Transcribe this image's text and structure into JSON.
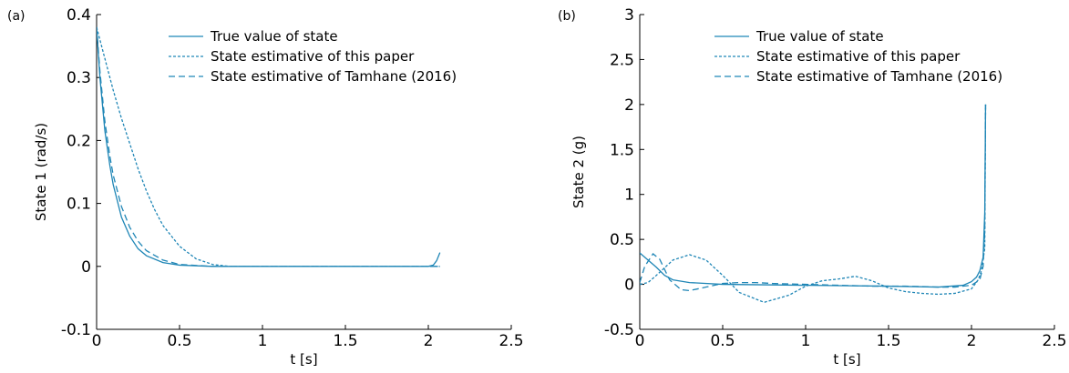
{
  "colors": {
    "series": "#1f86b6"
  },
  "chart_data": [
    {
      "panel_label": "(a)",
      "type": "line",
      "xlabel": "t [s]",
      "ylabel": "State 1 (rad/s)",
      "xlim": [
        0,
        2.5
      ],
      "ylim": [
        -0.1,
        0.4
      ],
      "xticks": [
        0,
        0.5,
        1,
        1.5,
        2,
        2.5
      ],
      "xtick_labels": [
        "0",
        "0.5",
        "1",
        "1.5",
        "2",
        "2.5"
      ],
      "yticks": [
        -0.1,
        0,
        0.1,
        0.2,
        0.3,
        0.4
      ],
      "ytick_labels": [
        "-0.1",
        "0",
        "0.1",
        "0.2",
        "0.3",
        "0.4"
      ],
      "grid": false,
      "legend_position": "top-right",
      "series": [
        {
          "name": "True value of state",
          "style": "solid",
          "x": [
            0,
            0.02,
            0.05,
            0.08,
            0.1,
            0.15,
            0.2,
            0.25,
            0.3,
            0.4,
            0.5,
            0.7,
            1.0,
            1.5,
            2.0,
            2.03,
            2.05,
            2.07
          ],
          "y": [
            0.38,
            0.3,
            0.215,
            0.16,
            0.13,
            0.078,
            0.048,
            0.028,
            0.017,
            0.006,
            0.002,
            0.0,
            0.0,
            0.0,
            0.0,
            0.002,
            0.009,
            0.022
          ]
        },
        {
          "name": "State estimative of this paper",
          "style": "dotted",
          "x": [
            0,
            0.05,
            0.1,
            0.15,
            0.2,
            0.25,
            0.3,
            0.35,
            0.4,
            0.5,
            0.6,
            0.7,
            0.8,
            1.0,
            1.5,
            2.0,
            2.07
          ],
          "y": [
            0.38,
            0.33,
            0.28,
            0.235,
            0.195,
            0.155,
            0.12,
            0.09,
            0.065,
            0.032,
            0.012,
            0.003,
            0.0,
            0.0,
            0.0,
            0.0,
            0.0
          ]
        },
        {
          "name": "State estimative of Tamhane (2016)",
          "style": "dashed",
          "x": [
            0,
            0.02,
            0.05,
            0.08,
            0.1,
            0.15,
            0.2,
            0.25,
            0.3,
            0.4,
            0.5,
            0.7,
            1.0,
            1.5,
            2.0,
            2.07
          ],
          "y": [
            0.38,
            0.31,
            0.23,
            0.175,
            0.145,
            0.095,
            0.062,
            0.04,
            0.025,
            0.01,
            0.003,
            0.0,
            0.0,
            0.0,
            0.0,
            0.0
          ]
        }
      ]
    },
    {
      "panel_label": "(b)",
      "type": "line",
      "xlabel": "t [s]",
      "ylabel": "State 2 (g)",
      "xlim": [
        0,
        2.5
      ],
      "ylim": [
        -0.5,
        3
      ],
      "xticks": [
        0,
        0.5,
        1,
        1.5,
        2,
        2.5
      ],
      "xtick_labels": [
        "0",
        "0.5",
        "1",
        "1.5",
        "2",
        "2.5"
      ],
      "yticks": [
        -0.5,
        0,
        0.5,
        1,
        1.5,
        2,
        2.5,
        3
      ],
      "ytick_labels": [
        "-0.5",
        "0",
        "0.5",
        "1",
        "1.5",
        "2",
        "2.5",
        "3"
      ],
      "grid": false,
      "legend_position": "top-right",
      "series": [
        {
          "name": "True value of state",
          "style": "solid",
          "x": [
            0,
            0.05,
            0.1,
            0.15,
            0.2,
            0.3,
            0.5,
            1.0,
            1.5,
            1.8,
            1.95,
            2.0,
            2.03,
            2.05,
            2.07,
            2.08,
            2.085
          ],
          "y": [
            0.35,
            0.27,
            0.19,
            0.1,
            0.05,
            0.02,
            0.0,
            -0.01,
            -0.02,
            -0.03,
            -0.01,
            0.03,
            0.08,
            0.15,
            0.3,
            0.8,
            2.0
          ]
        },
        {
          "name": "State estimative of this paper",
          "style": "dotted",
          "x": [
            0,
            0.05,
            0.1,
            0.2,
            0.3,
            0.4,
            0.5,
            0.6,
            0.75,
            0.9,
            1.0,
            1.1,
            1.2,
            1.3,
            1.4,
            1.5,
            1.6,
            1.7,
            1.8,
            1.9,
            2.0,
            2.04,
            2.06,
            2.08,
            2.085
          ],
          "y": [
            0.0,
            0.02,
            0.1,
            0.27,
            0.33,
            0.27,
            0.1,
            -0.09,
            -0.2,
            -0.12,
            -0.02,
            0.04,
            0.06,
            0.09,
            0.04,
            -0.04,
            -0.08,
            -0.1,
            -0.11,
            -0.1,
            -0.05,
            0.05,
            0.15,
            0.4,
            2.0
          ]
        },
        {
          "name": "State estimative of Tamhane (2016)",
          "style": "dashed",
          "x": [
            0,
            0.03,
            0.08,
            0.12,
            0.18,
            0.25,
            0.3,
            0.4,
            0.5,
            0.6,
            0.7,
            0.8,
            1.0,
            1.2,
            1.4,
            1.6,
            1.8,
            1.9,
            2.0,
            2.05,
            2.07,
            2.08,
            2.085
          ],
          "y": [
            0.02,
            0.2,
            0.34,
            0.28,
            0.05,
            -0.06,
            -0.07,
            -0.03,
            0.01,
            0.02,
            0.02,
            0.01,
            0.0,
            -0.01,
            -0.02,
            -0.02,
            -0.03,
            -0.03,
            -0.01,
            0.05,
            0.2,
            0.6,
            2.0
          ]
        }
      ]
    }
  ]
}
